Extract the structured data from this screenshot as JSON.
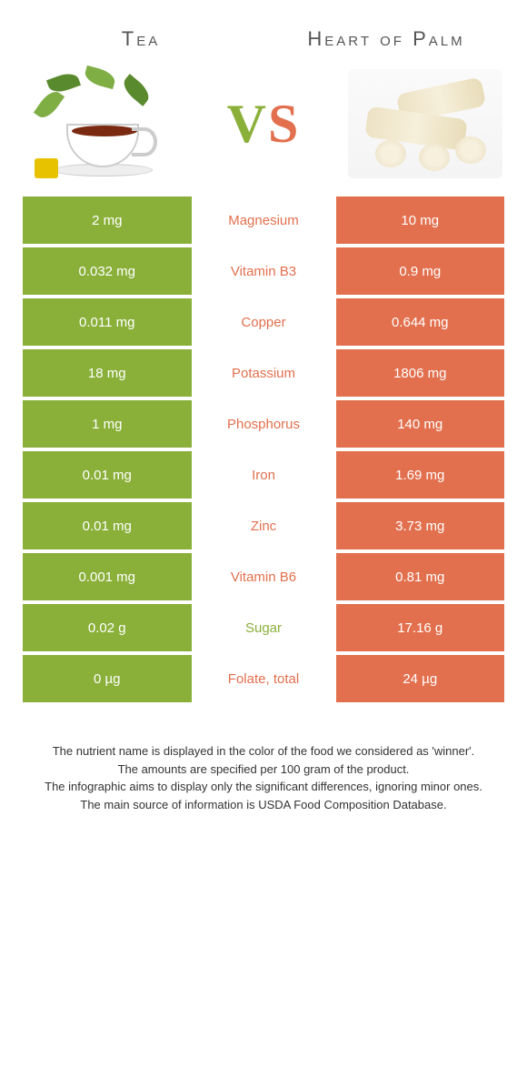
{
  "foods": {
    "left": {
      "title": "Tea"
    },
    "right": {
      "title": "Heart of Palm"
    }
  },
  "vs": {
    "v": "V",
    "s": "S"
  },
  "colors": {
    "left": "#8ab03a",
    "right": "#e2704e",
    "white": "#ffffff"
  },
  "rows": [
    {
      "left": "2 mg",
      "label": "Magnesium",
      "right": "10 mg",
      "winner": "right"
    },
    {
      "left": "0.032 mg",
      "label": "Vitamin B3",
      "right": "0.9 mg",
      "winner": "right"
    },
    {
      "left": "0.011 mg",
      "label": "Copper",
      "right": "0.644 mg",
      "winner": "right"
    },
    {
      "left": "18 mg",
      "label": "Potassium",
      "right": "1806 mg",
      "winner": "right"
    },
    {
      "left": "1 mg",
      "label": "Phosphorus",
      "right": "140 mg",
      "winner": "right"
    },
    {
      "left": "0.01 mg",
      "label": "Iron",
      "right": "1.69 mg",
      "winner": "right"
    },
    {
      "left": "0.01 mg",
      "label": "Zinc",
      "right": "3.73 mg",
      "winner": "right"
    },
    {
      "left": "0.001 mg",
      "label": "Vitamin B6",
      "right": "0.81 mg",
      "winner": "right"
    },
    {
      "left": "0.02 g",
      "label": "Sugar",
      "right": "17.16 g",
      "winner": "left"
    },
    {
      "left": "0 µg",
      "label": "Folate, total",
      "right": "24 µg",
      "winner": "right"
    }
  ],
  "footer": {
    "l1": "The nutrient name is displayed in the color of the food we considered as 'winner'.",
    "l2": "The amounts are specified per 100 gram of the product.",
    "l3": "The infographic aims to display only the significant differences, ignoring minor ones.",
    "l4": "The main source of information is USDA Food Composition Database."
  }
}
